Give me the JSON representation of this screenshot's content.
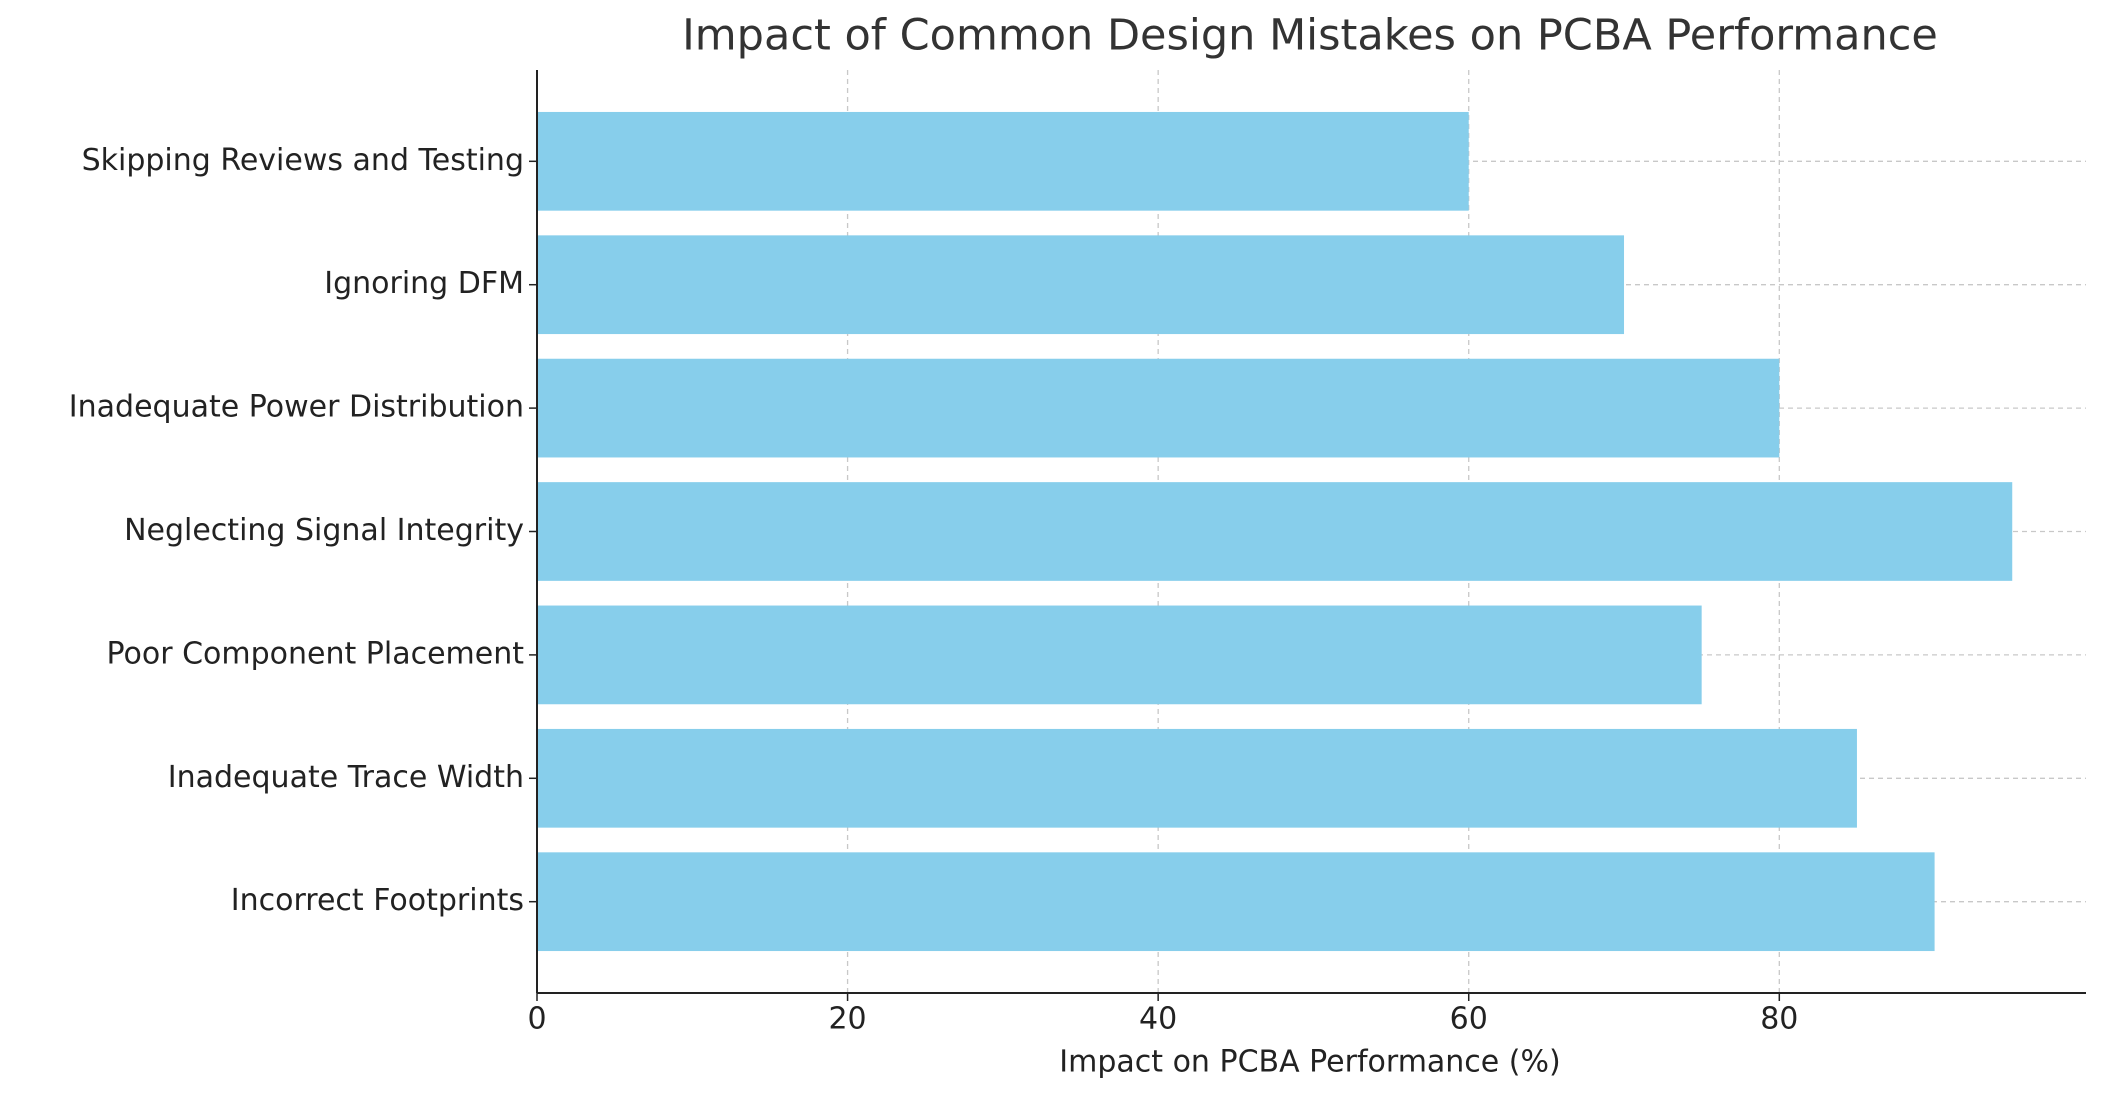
{
  "chart_data": {
    "type": "barh",
    "title": "Impact of Common Design Mistakes on PCBA Performance",
    "x_label": "Impact on PCBA Performance (%)",
    "categories": [
      "Incorrect Footprints",
      "Inadequate Trace Width",
      "Poor Component Placement",
      "Neglecting Signal Integrity",
      "Inadequate Power Distribution",
      "Ignoring DFM",
      "Skipping Reviews and Testing"
    ],
    "values": [
      90,
      85,
      75,
      95,
      80,
      70,
      60
    ],
    "color": "#87ceeb",
    "xlim": [
      0,
      99.75
    ],
    "xticks": [
      0,
      20,
      40,
      60,
      80
    ],
    "grid": true
  }
}
